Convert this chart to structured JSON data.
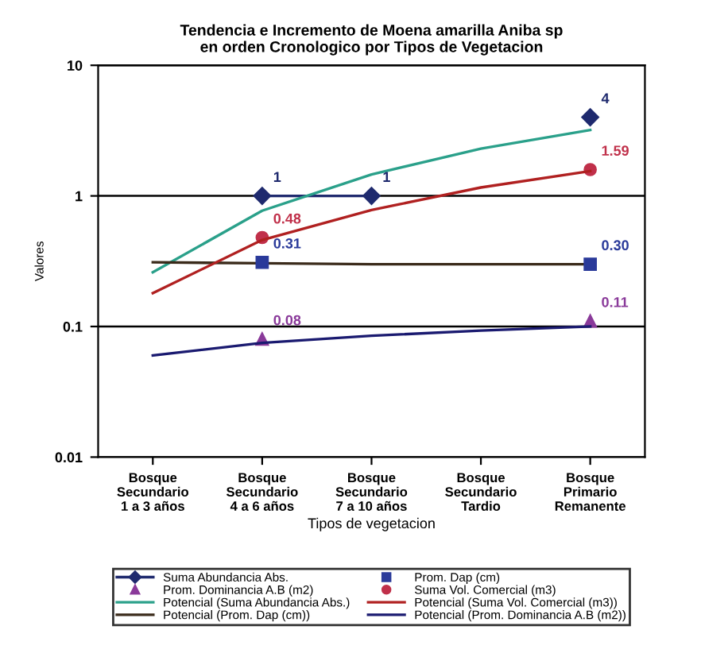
{
  "chart_data": {
    "type": "line",
    "title": "Tendencia e Incremento de Moena amarilla Aniba sp\nen orden Cronologico por Tipos de Vegetacion",
    "categories": [
      "Bosque\nSecundario\n1 a 3 años",
      "Bosque\nSecundario\n4 a 6 años",
      "Bosque\nSecundario\n7 a 10 años",
      "Bosque\nSecundario\nTardio",
      "Bosque\nPrimario\nRemanente"
    ],
    "xlabel": "Tipos de vegetacion",
    "ylabel": "Valores",
    "log": true,
    "ylim": [
      0.01,
      10
    ],
    "yticks": [
      0.01,
      0.1,
      1,
      10
    ],
    "grid": "y",
    "legend": "bottom",
    "series": [
      {
        "name": "Suma Abundancia Abs.",
        "color": "#1f2a6e",
        "marker": "diamond",
        "values": [
          null,
          1,
          1,
          null,
          4
        ],
        "value_labels": [
          null,
          "1",
          "1",
          null,
          "4"
        ]
      },
      {
        "name": "Prom. Dominancia A.B (m2)",
        "type": "scatter",
        "color": "#8a3a9a",
        "marker": "triangle",
        "values": [
          null,
          0.08,
          null,
          null,
          0.11
        ],
        "value_labels": [
          null,
          "0.08",
          null,
          null,
          "0.11"
        ]
      },
      {
        "name": "Potencial (Suma Abundancia Abs.)",
        "color": "#2aa08a",
        "marker": "none",
        "values": [
          0.26,
          0.77,
          1.46,
          2.3,
          3.2
        ]
      },
      {
        "name": "Potencial (Prom. Dap (cm))",
        "color": "#3a2a1a",
        "marker": "none",
        "values": [
          0.31,
          0.305,
          0.3,
          0.3,
          0.3
        ]
      },
      {
        "name": "Prom. Dap (cm)",
        "type": "scatter",
        "color": "#2a3a9a",
        "marker": "square",
        "values": [
          null,
          0.31,
          null,
          null,
          0.3
        ],
        "value_labels": [
          null,
          "0.31",
          null,
          null,
          "0.30"
        ]
      },
      {
        "name": "Suma Vol. Comercial (m3)",
        "type": "scatter",
        "color": "#c0304a",
        "marker": "circle",
        "values": [
          null,
          0.48,
          null,
          null,
          1.59
        ],
        "value_labels": [
          null,
          "0.48",
          null,
          null,
          "1.59"
        ]
      },
      {
        "name": "Potencial (Suma Vol. Comercial (m3))",
        "color": "#b02020",
        "marker": "none",
        "values": [
          0.18,
          0.46,
          0.78,
          1.16,
          1.55
        ]
      },
      {
        "name": "Potencial (Prom. Dominancia A.B (m2))",
        "color": "#1a1a70",
        "marker": "none",
        "values": [
          0.06,
          0.075,
          0.085,
          0.093,
          0.1
        ]
      }
    ]
  }
}
